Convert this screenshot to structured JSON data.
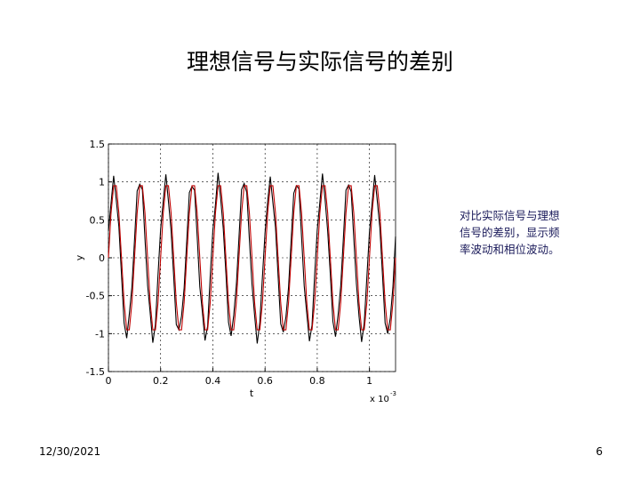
{
  "slide": {
    "title": "理想信号与实际信号的差别",
    "note": [
      "对比实际信号与理想",
      "信号的差别，显示频",
      "率波动和相位波动。"
    ],
    "date": "12/30/2021",
    "page": "6"
  },
  "chart_data": {
    "type": "line",
    "grid": true,
    "xlabel": "t",
    "ylabel": "y",
    "x_scale": {
      "base": "x 10",
      "exponent": "-3"
    },
    "xlim": [
      0,
      1.1
    ],
    "ylim": [
      -1.5,
      1.5
    ],
    "xticks": [
      0,
      0.2,
      0.4,
      0.6,
      0.8,
      1
    ],
    "yticks": [
      -1.5,
      -1,
      -0.5,
      0,
      0.5,
      1,
      1.5
    ],
    "x": [
      0,
      0.01,
      0.02,
      0.03,
      0.04,
      0.05,
      0.06,
      0.07,
      0.08,
      0.09,
      0.1,
      0.11,
      0.12,
      0.13,
      0.14,
      0.15,
      0.16,
      0.17,
      0.18,
      0.19,
      0.2,
      0.21,
      0.22,
      0.23,
      0.24,
      0.25,
      0.26,
      0.27,
      0.28,
      0.29,
      0.3,
      0.31,
      0.32,
      0.33,
      0.34,
      0.35,
      0.36,
      0.37,
      0.38,
      0.39,
      0.4,
      0.41,
      0.42,
      0.43,
      0.44,
      0.45,
      0.46,
      0.47,
      0.48,
      0.49,
      0.5,
      0.51,
      0.52,
      0.53,
      0.54,
      0.55,
      0.56,
      0.57,
      0.58,
      0.59,
      0.6,
      0.61,
      0.62,
      0.63,
      0.64,
      0.65,
      0.66,
      0.67,
      0.68,
      0.69,
      0.7,
      0.71,
      0.72,
      0.73,
      0.74,
      0.75,
      0.76,
      0.77,
      0.78,
      0.79,
      0.8,
      0.81,
      0.82,
      0.83,
      0.84,
      0.85,
      0.86,
      0.87,
      0.88,
      0.89,
      0.9,
      0.91,
      0.92,
      0.93,
      0.94,
      0.95,
      0.96,
      0.97,
      0.98,
      0.99,
      1,
      1.01,
      1.02,
      1.03,
      1.04,
      1.05,
      1.06,
      1.07,
      1.08,
      1.09,
      1.1
    ],
    "series": [
      {
        "color": "#000000",
        "values": [
          0.35,
          0.72,
          1.08,
          0.76,
          0.41,
          -0.22,
          -0.86,
          -1.06,
          -0.74,
          -0.38,
          0.24,
          0.88,
          0.97,
          0.9,
          0.25,
          -0.36,
          -0.73,
          -1.12,
          -0.88,
          -0.22,
          0.38,
          0.75,
          1.1,
          0.74,
          0.36,
          -0.25,
          -0.88,
          -0.95,
          -0.77,
          -0.4,
          0.22,
          0.86,
          0.94,
          0.89,
          0.28,
          -0.38,
          -0.72,
          -1.09,
          -0.9,
          -0.24,
          0.36,
          0.7,
          1.12,
          0.78,
          0.38,
          -0.2,
          -0.85,
          -1.03,
          -0.76,
          -0.36,
          0.26,
          0.9,
          0.98,
          0.86,
          0.24,
          -0.35,
          -0.76,
          -1.13,
          -0.85,
          -0.25,
          0.33,
          0.74,
          1.07,
          0.73,
          0.4,
          -0.24,
          -0.87,
          -0.98,
          -0.78,
          -0.39,
          0.23,
          0.85,
          0.95,
          0.91,
          0.27,
          -0.37,
          -0.74,
          -1.1,
          -0.89,
          -0.23,
          0.37,
          0.73,
          1.11,
          0.77,
          0.35,
          -0.21,
          -0.84,
          -1.04,
          -0.75,
          -0.37,
          0.25,
          0.89,
          0.96,
          0.87,
          0.26,
          -0.34,
          -0.77,
          -1.11,
          -0.86,
          -0.26,
          0.34,
          0.71,
          1.09,
          0.75,
          0.39,
          -0.23,
          -0.86,
          -1.0,
          -0.79,
          -0.38,
          0.28
        ]
      },
      {
        "color": "#c00000",
        "values": [
          0,
          0.59,
          0.95,
          0.95,
          0.59,
          0,
          -0.59,
          -0.95,
          -0.95,
          -0.59,
          0,
          0.59,
          0.95,
          0.95,
          0.59,
          0,
          -0.59,
          -0.95,
          -0.95,
          -0.59,
          0,
          0.59,
          0.95,
          0.95,
          0.59,
          0,
          -0.59,
          -0.95,
          -0.95,
          -0.59,
          0,
          0.59,
          0.95,
          0.95,
          0.59,
          0,
          -0.59,
          -0.95,
          -0.95,
          -0.59,
          0,
          0.59,
          0.95,
          0.95,
          0.59,
          0,
          -0.59,
          -0.95,
          -0.95,
          -0.59,
          0,
          0.59,
          0.95,
          0.95,
          0.59,
          0,
          -0.59,
          -0.95,
          -0.95,
          -0.59,
          0,
          0.59,
          0.95,
          0.95,
          0.59,
          0,
          -0.59,
          -0.95,
          -0.95,
          -0.59,
          0,
          0.59,
          0.95,
          0.95,
          0.59,
          0,
          -0.59,
          -0.95,
          -0.95,
          -0.59,
          0,
          0.59,
          0.95,
          0.95,
          0.59,
          0,
          -0.59,
          -0.95,
          -0.95,
          -0.59,
          0,
          0.59,
          0.95,
          0.95,
          0.59,
          0,
          -0.59,
          -0.95,
          -0.95,
          -0.59,
          0,
          0.59,
          0.95,
          0.95,
          0.59,
          0,
          -0.59,
          -0.95,
          -0.95,
          -0.59,
          0
        ]
      }
    ]
  }
}
